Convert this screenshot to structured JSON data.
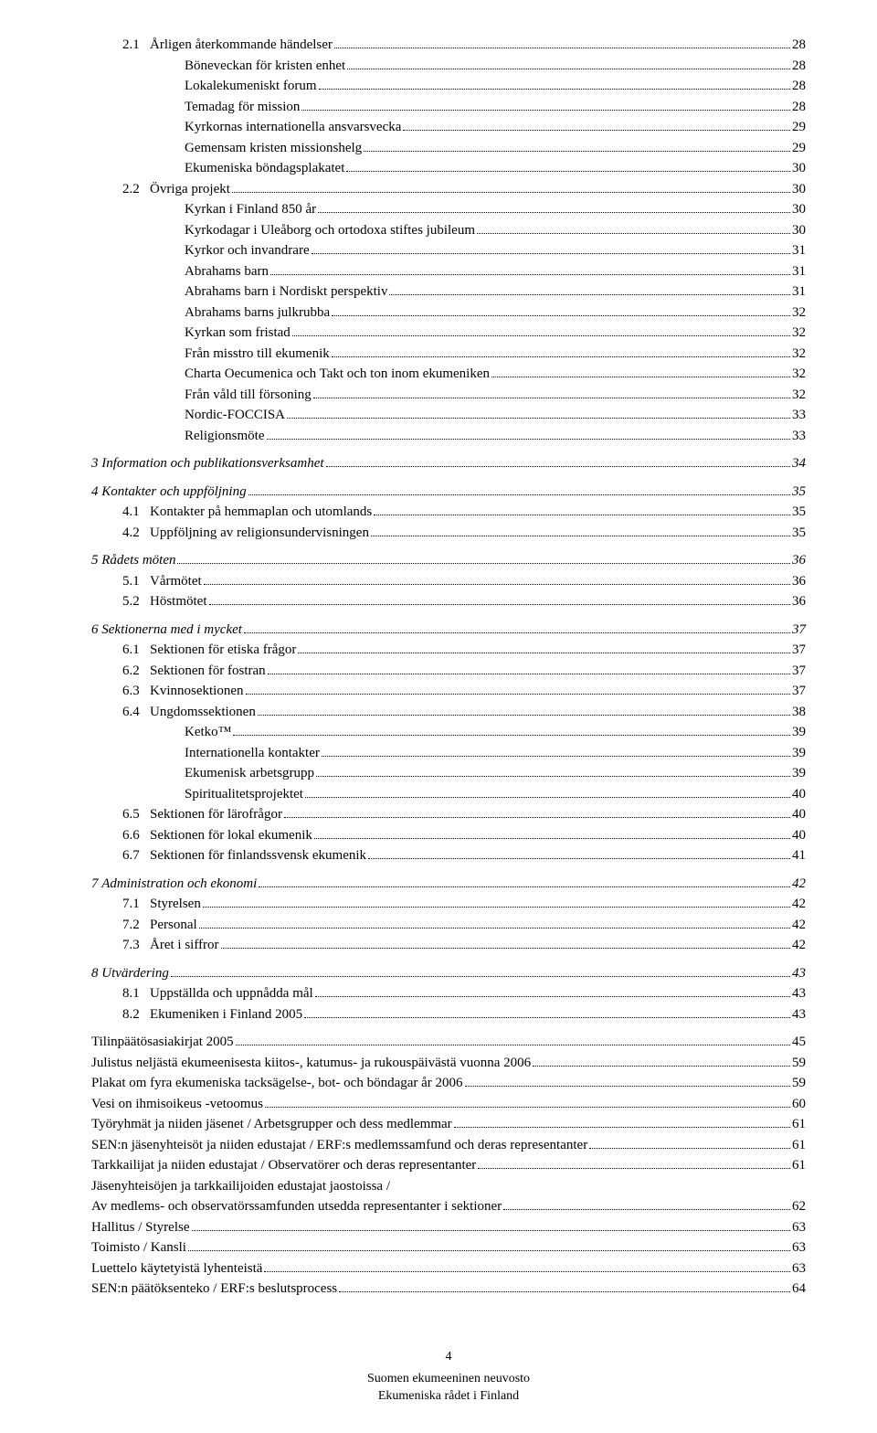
{
  "entries": [
    {
      "num": "2.1",
      "label": "Årligen återkommande händelser",
      "page": "28",
      "indent": 1,
      "italic": false,
      "gap": false
    },
    {
      "num": "",
      "label": "Böneveckan för kristen enhet",
      "page": "28",
      "indent": 3,
      "italic": false,
      "gap": false
    },
    {
      "num": "",
      "label": "Lokalekumeniskt forum",
      "page": "28",
      "indent": 3,
      "italic": false,
      "gap": false
    },
    {
      "num": "",
      "label": "Temadag för mission",
      "page": "28",
      "indent": 3,
      "italic": false,
      "gap": false
    },
    {
      "num": "",
      "label": "Kyrkornas internationella ansvarsvecka",
      "page": "29",
      "indent": 3,
      "italic": false,
      "gap": false
    },
    {
      "num": "",
      "label": "Gemensam kristen missionshelg",
      "page": "29",
      "indent": 3,
      "italic": false,
      "gap": false
    },
    {
      "num": "",
      "label": "Ekumeniska böndagsplakatet",
      "page": "30",
      "indent": 3,
      "italic": false,
      "gap": false
    },
    {
      "num": "2.2",
      "label": "Övriga projekt",
      "page": "30",
      "indent": 1,
      "italic": false,
      "gap": false
    },
    {
      "num": "",
      "label": "Kyrkan i Finland 850 år",
      "page": "30",
      "indent": 3,
      "italic": false,
      "gap": false
    },
    {
      "num": "",
      "label": "Kyrkodagar i Uleåborg och ortodoxa stiftes jubileum",
      "page": "30",
      "indent": 3,
      "italic": false,
      "gap": false
    },
    {
      "num": "",
      "label": "Kyrkor och invandrare",
      "page": "31",
      "indent": 3,
      "italic": false,
      "gap": false
    },
    {
      "num": "",
      "label": "Abrahams barn",
      "page": "31",
      "indent": 3,
      "italic": false,
      "gap": false
    },
    {
      "num": "",
      "label": "Abrahams barn i Nordiskt perspektiv",
      "page": "31",
      "indent": 3,
      "italic": false,
      "gap": false
    },
    {
      "num": "",
      "label": "Abrahams barns julkrubba",
      "page": "32",
      "indent": 3,
      "italic": false,
      "gap": false
    },
    {
      "num": "",
      "label": "Kyrkan som fristad",
      "page": "32",
      "indent": 3,
      "italic": false,
      "gap": false
    },
    {
      "num": "",
      "label": "Från misstro till ekumenik",
      "page": "32",
      "indent": 3,
      "italic": false,
      "gap": false
    },
    {
      "num": "",
      "label": "Charta Oecumenica och Takt och ton inom ekumeniken",
      "page": "32",
      "indent": 3,
      "italic": false,
      "gap": false
    },
    {
      "num": "",
      "label": "Från våld till försoning",
      "page": "32",
      "indent": 3,
      "italic": false,
      "gap": false
    },
    {
      "num": "",
      "label": "Nordic-FOCCISA",
      "page": "33",
      "indent": 3,
      "italic": false,
      "gap": false
    },
    {
      "num": "",
      "label": "Religionsmöte",
      "page": "33",
      "indent": 3,
      "italic": false,
      "gap": false
    },
    {
      "num": "3",
      "label": "Information och publikationsverksamhet",
      "page": "34",
      "indent": 0,
      "italic": true,
      "gap": true
    },
    {
      "num": "4",
      "label": "Kontakter och uppföljning",
      "page": "35",
      "indent": 0,
      "italic": true,
      "gap": true
    },
    {
      "num": "4.1",
      "label": "Kontakter på hemmaplan och utomlands",
      "page": "35",
      "indent": 1,
      "italic": false,
      "gap": false
    },
    {
      "num": "4.2",
      "label": "Uppföljning av religionsundervisningen",
      "page": "35",
      "indent": 1,
      "italic": false,
      "gap": false
    },
    {
      "num": "5",
      "label": "Rådets möten",
      "page": "36",
      "indent": 0,
      "italic": true,
      "gap": true
    },
    {
      "num": "5.1",
      "label": "Vårmötet",
      "page": "36",
      "indent": 1,
      "italic": false,
      "gap": false
    },
    {
      "num": "5.2",
      "label": "Höstmötet",
      "page": "36",
      "indent": 1,
      "italic": false,
      "gap": false
    },
    {
      "num": "6",
      "label": "Sektionerna med i mycket",
      "page": "37",
      "indent": 0,
      "italic": true,
      "gap": true
    },
    {
      "num": "6.1",
      "label": "Sektionen för etiska frågor",
      "page": "37",
      "indent": 1,
      "italic": false,
      "gap": false
    },
    {
      "num": "6.2",
      "label": "Sektionen för fostran",
      "page": "37",
      "indent": 1,
      "italic": false,
      "gap": false
    },
    {
      "num": "6.3",
      "label": "Kvinnosektionen",
      "page": "37",
      "indent": 1,
      "italic": false,
      "gap": false
    },
    {
      "num": "6.4",
      "label": "Ungdomssektionen",
      "page": "38",
      "indent": 1,
      "italic": false,
      "gap": false
    },
    {
      "num": "",
      "label": "Ketko™",
      "page": "39",
      "indent": 3,
      "italic": false,
      "gap": false
    },
    {
      "num": "",
      "label": "Internationella kontakter",
      "page": "39",
      "indent": 3,
      "italic": false,
      "gap": false
    },
    {
      "num": "",
      "label": "Ekumenisk arbetsgrupp",
      "page": "39",
      "indent": 3,
      "italic": false,
      "gap": false
    },
    {
      "num": "",
      "label": "Spiritualitetsprojektet",
      "page": "40",
      "indent": 3,
      "italic": false,
      "gap": false
    },
    {
      "num": "6.5",
      "label": "Sektionen för lärofrågor",
      "page": "40",
      "indent": 1,
      "italic": false,
      "gap": false
    },
    {
      "num": "6.6",
      "label": "Sektionen för lokal ekumenik",
      "page": "40",
      "indent": 1,
      "italic": false,
      "gap": false
    },
    {
      "num": "6.7",
      "label": "Sektionen för finlandssvensk ekumenik",
      "page": "41",
      "indent": 1,
      "italic": false,
      "gap": false
    },
    {
      "num": "7",
      "label": "Administration och ekonomi",
      "page": "42",
      "indent": 0,
      "italic": true,
      "gap": true
    },
    {
      "num": "7.1",
      "label": "Styrelsen",
      "page": "42",
      "indent": 1,
      "italic": false,
      "gap": false
    },
    {
      "num": "7.2",
      "label": "Personal",
      "page": "42",
      "indent": 1,
      "italic": false,
      "gap": false
    },
    {
      "num": "7.3",
      "label": "Året i siffror",
      "page": "42",
      "indent": 1,
      "italic": false,
      "gap": false
    },
    {
      "num": "8",
      "label": "Utvärdering",
      "page": "43",
      "indent": 0,
      "italic": true,
      "gap": true
    },
    {
      "num": "8.1",
      "label": "Uppställda och uppnådda mål",
      "page": "43",
      "indent": 1,
      "italic": false,
      "gap": false
    },
    {
      "num": "8.2",
      "label": "Ekumeniken i Finland 2005",
      "page": "43",
      "indent": 1,
      "italic": false,
      "gap": false
    },
    {
      "num": "",
      "label": "Tilinpäätösasiakirjat 2005",
      "page": "45",
      "indent": 0,
      "italic": false,
      "gap": true
    },
    {
      "num": "",
      "label": "Julistus neljästä ekumeenisesta kiitos-, katumus- ja rukouspäivästä vuonna 2006",
      "page": "59",
      "indent": 0,
      "italic": false,
      "gap": false
    },
    {
      "num": "",
      "label": "Plakat om fyra ekumeniska tacksägelse-, bot- och böndagar år 2006",
      "page": "59",
      "indent": 0,
      "italic": false,
      "gap": false
    },
    {
      "num": "",
      "label": "Vesi on ihmisoikeus -vetoomus",
      "page": "60",
      "indent": 0,
      "italic": false,
      "gap": false
    },
    {
      "num": "",
      "label": "Työryhmät ja niiden jäsenet / Arbetsgrupper och dess medlemmar",
      "page": "61",
      "indent": 0,
      "italic": false,
      "gap": false
    },
    {
      "num": "",
      "label": "SEN:n jäsenyhteisöt ja niiden edustajat / ERF:s medlemssamfund och deras representanter",
      "page": "61",
      "indent": 0,
      "italic": false,
      "gap": false
    },
    {
      "num": "",
      "label": "Tarkkailijat ja niiden edustajat / Observatörer och deras representanter",
      "page": "61",
      "indent": 0,
      "italic": false,
      "gap": false
    },
    {
      "num": "",
      "label": "Jäsenyhteisöjen ja tarkkailijoiden edustajat jaostoissa /",
      "page": "",
      "indent": 0,
      "italic": false,
      "gap": false,
      "nodots": true
    },
    {
      "num": "",
      "label": "Av medlems- och observatörssamfunden utsedda representanter i sektioner",
      "page": "62",
      "indent": 0,
      "italic": false,
      "gap": false
    },
    {
      "num": "",
      "label": "Hallitus / Styrelse",
      "page": "63",
      "indent": 0,
      "italic": false,
      "gap": false
    },
    {
      "num": "",
      "label": "Toimisto / Kansli",
      "page": "63",
      "indent": 0,
      "italic": false,
      "gap": false
    },
    {
      "num": "",
      "label": "Luettelo käytetyistä lyhenteistä",
      "page": "63",
      "indent": 0,
      "italic": false,
      "gap": false
    },
    {
      "num": "",
      "label": "SEN:n päätöksenteko / ERF:s beslutsprocess",
      "page": "64",
      "indent": 0,
      "italic": false,
      "gap": false
    }
  ],
  "footer": {
    "page_number": "4",
    "line1": "Suomen ekumeeninen neuvosto",
    "line2": "Ekumeniska rådet i Finland"
  }
}
